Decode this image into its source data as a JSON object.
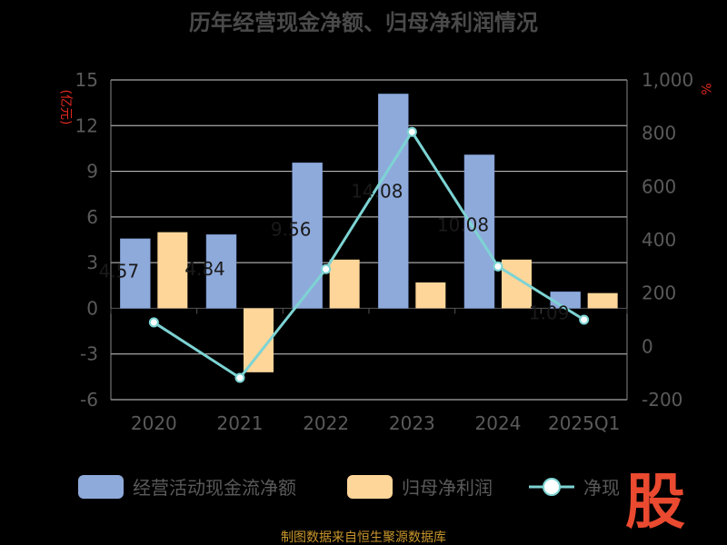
{
  "chart_data": {
    "type": "bar",
    "title": "历年经营现金净额、归母净利润情况",
    "y_left_unit": "(亿元)",
    "y_right_unit": "%",
    "categories": [
      "2020",
      "2021",
      "2022",
      "2023",
      "2024",
      "2025Q1"
    ],
    "series": [
      {
        "name": "经营活动现金流净额",
        "kind": "bar",
        "axis": "left",
        "color": "#8eaadb",
        "values": [
          4.57,
          4.84,
          9.56,
          14.08,
          10.08,
          1.09
        ],
        "labels": [
          "4.57",
          "4.84",
          "9.56",
          "14.08",
          "10.08",
          "1.09"
        ]
      },
      {
        "name": "归母净利润",
        "kind": "bar",
        "axis": "left",
        "color": "#ffd699",
        "values": [
          5.0,
          -4.2,
          3.2,
          1.7,
          3.2,
          1.0
        ]
      },
      {
        "name": "净现",
        "kind": "line",
        "axis": "right",
        "color": "#7dd3d3",
        "values": [
          90,
          -118,
          290,
          805,
          300,
          100
        ]
      }
    ],
    "ylim_left": [
      -6,
      15
    ],
    "yticks_left": [
      -6,
      -3,
      0,
      3,
      6,
      9,
      12,
      15
    ],
    "ytick_labels_left": [
      "-6",
      "-3",
      "0",
      "3",
      "6",
      "9",
      "12",
      "15"
    ],
    "ylim_right": [
      -200,
      1000
    ],
    "yticks_right": [
      -200,
      0,
      200,
      400,
      600,
      800,
      1000
    ],
    "ytick_labels_right": [
      "-200",
      "0",
      "200",
      "400",
      "600",
      "800",
      "1,000"
    ],
    "grid": true,
    "legend_position": "bottom"
  },
  "source_text": "制图数据来自恒生聚源数据库",
  "logo_text": "股"
}
